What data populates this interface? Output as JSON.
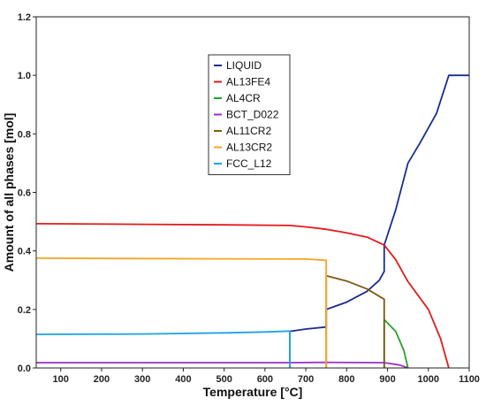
{
  "chart_data": {
    "type": "line",
    "title": "",
    "xlabel": "Temperature [°C]",
    "ylabel": "Amount of all phases [mol]",
    "xlim": [
      40,
      1100
    ],
    "ylim": [
      0,
      1.2
    ],
    "xticks": [
      100,
      200,
      300,
      400,
      500,
      600,
      700,
      800,
      900,
      1000,
      1100
    ],
    "yticks": [
      0,
      0.2,
      0.4,
      0.6,
      0.8,
      1.0,
      1.2
    ],
    "xtick_labels": [
      "100",
      "200",
      "300",
      "400",
      "500",
      "600",
      "700",
      "800",
      "900",
      "1000",
      "1100"
    ],
    "ytick_labels": [
      "0.0",
      "0.2",
      "0.4",
      "0.6",
      "0.8",
      "1.0",
      "1.2"
    ],
    "grid": false,
    "legend_position": "top-center",
    "series": [
      {
        "name": "LIQUID",
        "color": "#1b2d8f",
        "x": [
          661,
          661,
          700,
          750,
          750,
          800,
          850,
          880,
          892,
          892,
          920,
          950,
          980,
          1020,
          1050,
          1100
        ],
        "y": [
          0.0,
          0.125,
          0.133,
          0.14,
          0.2,
          0.225,
          0.262,
          0.3,
          0.33,
          0.42,
          0.54,
          0.7,
          0.77,
          0.87,
          1.0,
          1.0
        ]
      },
      {
        "name": "AL13FE4",
        "color": "#e31a1c",
        "x": [
          40,
          300,
          500,
          661,
          700,
          750,
          800,
          850,
          892,
          920,
          950,
          1000,
          1030,
          1050
        ],
        "y": [
          0.493,
          0.491,
          0.489,
          0.487,
          0.482,
          0.474,
          0.462,
          0.447,
          0.42,
          0.37,
          0.295,
          0.2,
          0.1,
          0.0
        ]
      },
      {
        "name": "AL4CR",
        "color": "#2ca02c",
        "x": [
          892,
          892,
          920,
          940,
          950
        ],
        "y": [
          0.0,
          0.165,
          0.125,
          0.06,
          0.0
        ]
      },
      {
        "name": "BCT_D022",
        "color": "#9b30c8",
        "x": [
          40,
          300,
          661,
          750,
          892,
          930,
          950
        ],
        "y": [
          0.018,
          0.018,
          0.018,
          0.019,
          0.018,
          0.01,
          0.0
        ]
      },
      {
        "name": "AL11CR2",
        "color": "#7a5c12",
        "x": [
          750,
          750,
          800,
          850,
          892,
          892
        ],
        "y": [
          0.0,
          0.315,
          0.297,
          0.27,
          0.235,
          0.0
        ]
      },
      {
        "name": "AL13CR2",
        "color": "#f5a623",
        "x": [
          40,
          300,
          500,
          661,
          700,
          750,
          750
        ],
        "y": [
          0.375,
          0.374,
          0.373,
          0.372,
          0.372,
          0.368,
          0.0
        ]
      },
      {
        "name": "FCC_L12",
        "color": "#1ca3e6",
        "x": [
          40,
          300,
          500,
          600,
          661,
          661
        ],
        "y": [
          0.115,
          0.116,
          0.12,
          0.123,
          0.126,
          0.0
        ]
      }
    ]
  }
}
